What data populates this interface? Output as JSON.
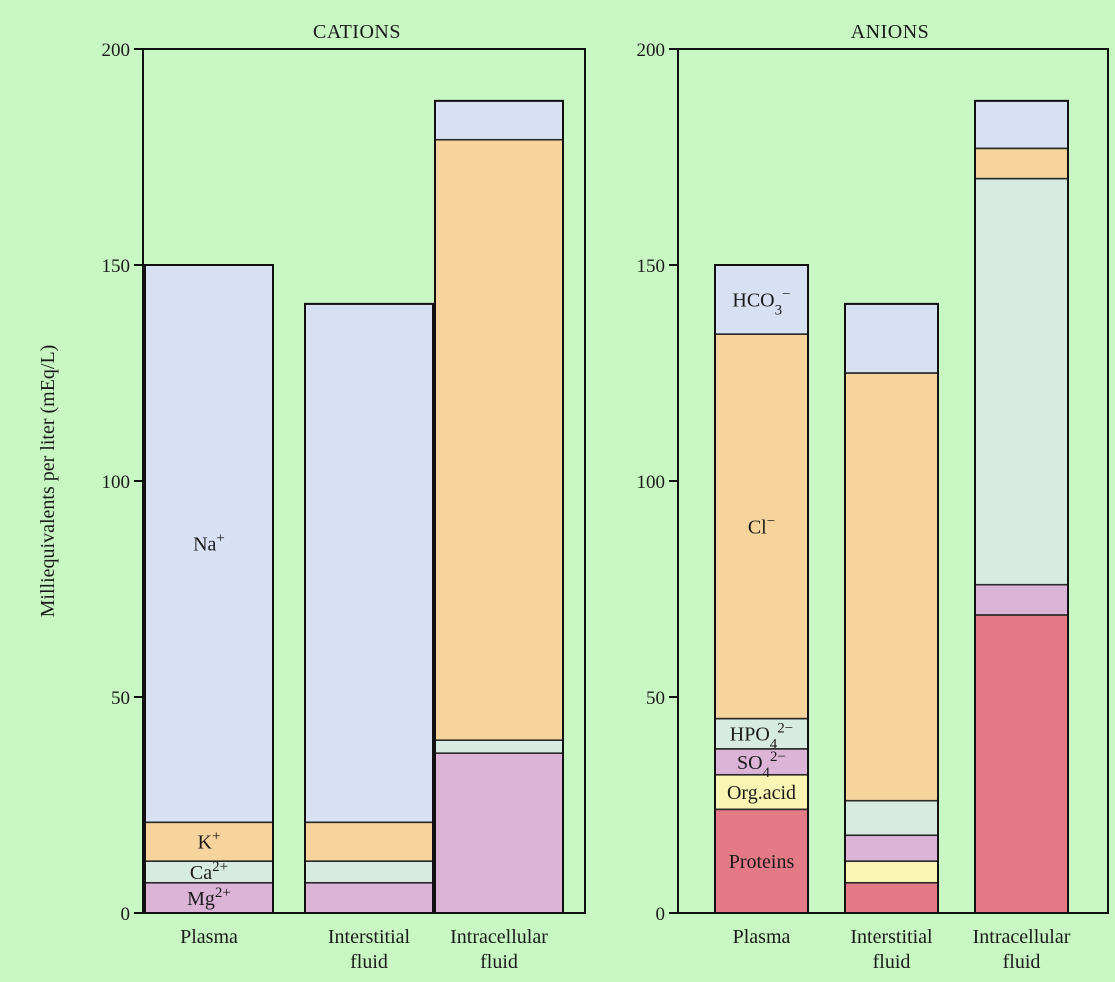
{
  "chart_data": {
    "type": "bar",
    "stacked": true,
    "ylabel": "Milliequivalents per liter (mEq/L)",
    "ylim": [
      0,
      200
    ],
    "yticks": [
      "0",
      "50",
      "100",
      "150",
      "200"
    ],
    "colors": {
      "blue": "#d8e0f3",
      "orange": "#f6d49c",
      "green": "#d6ebe2",
      "pink": "#dbb4d8",
      "yellow": "#fbf5b3",
      "red": "#e37a86"
    },
    "panels": [
      {
        "title": "CATIONS",
        "categories": [
          "Plasma",
          "Interstitial fluid",
          "Intracellular fluid"
        ],
        "category_lines": [
          [
            "Plasma"
          ],
          [
            "Interstitial",
            "fluid"
          ],
          [
            "Intracellular",
            "fluid"
          ]
        ],
        "stacks": [
          [
            {
              "ion": "Mg2+",
              "value": 7,
              "color": "pink"
            },
            {
              "ion": "Ca2+",
              "value": 5,
              "color": "green"
            },
            {
              "ion": "K+",
              "value": 9,
              "color": "orange"
            },
            {
              "ion": "Na+",
              "value": 129,
              "color": "blue"
            }
          ],
          [
            {
              "ion": "Mg2+",
              "value": 7,
              "color": "pink"
            },
            {
              "ion": "Ca2+",
              "value": 5,
              "color": "green"
            },
            {
              "ion": "K+",
              "value": 9,
              "color": "orange"
            },
            {
              "ion": "Na+",
              "value": 120,
              "color": "blue"
            }
          ],
          [
            {
              "ion": "Mg2+",
              "value": 37,
              "color": "pink"
            },
            {
              "ion": "Ca2+",
              "value": 3,
              "color": "green"
            },
            {
              "ion": "K+",
              "value": 139,
              "color": "orange"
            },
            {
              "ion": "Na+",
              "value": 9,
              "color": "blue"
            }
          ]
        ],
        "labels": [
          {
            "bar": 0,
            "segment": 3,
            "parts": [
              [
                "Na",
                ""
              ],
              [
                "+",
                "sup"
              ]
            ]
          },
          {
            "bar": 0,
            "segment": 2,
            "parts": [
              [
                "K",
                ""
              ],
              [
                "+",
                "sup"
              ]
            ]
          },
          {
            "bar": 0,
            "segment": 1,
            "parts": [
              [
                "Ca",
                ""
              ],
              [
                "2+",
                "sup"
              ]
            ]
          },
          {
            "bar": 0,
            "segment": 0,
            "parts": [
              [
                "Mg",
                ""
              ],
              [
                "2+",
                "sup"
              ]
            ]
          }
        ]
      },
      {
        "title": "ANIONS",
        "categories": [
          "Plasma",
          "Interstitial fluid",
          "Intracellular fluid"
        ],
        "category_lines": [
          [
            "Plasma"
          ],
          [
            "Interstitial",
            "fluid"
          ],
          [
            "Intracellular",
            "fluid"
          ]
        ],
        "stacks": [
          [
            {
              "ion": "Proteins",
              "value": 24,
              "color": "red"
            },
            {
              "ion": "Org.acid",
              "value": 8,
              "color": "yellow"
            },
            {
              "ion": "SO4 2-",
              "value": 6,
              "color": "pink"
            },
            {
              "ion": "HPO4 2-",
              "value": 7,
              "color": "green"
            },
            {
              "ion": "Cl-",
              "value": 89,
              "color": "orange"
            },
            {
              "ion": "HCO3-",
              "value": 16,
              "color": "blue"
            }
          ],
          [
            {
              "ion": "Proteins",
              "value": 7,
              "color": "red"
            },
            {
              "ion": "Org.acid",
              "value": 5,
              "color": "yellow"
            },
            {
              "ion": "SO4 2-",
              "value": 6,
              "color": "pink"
            },
            {
              "ion": "HPO4 2-",
              "value": 8,
              "color": "green"
            },
            {
              "ion": "Cl-",
              "value": 99,
              "color": "orange"
            },
            {
              "ion": "HCO3-",
              "value": 16,
              "color": "blue"
            }
          ],
          [
            {
              "ion": "Proteins",
              "value": 69,
              "color": "red"
            },
            {
              "ion": "SO4 2-",
              "value": 7,
              "color": "pink"
            },
            {
              "ion": "HPO4 2-",
              "value": 94,
              "color": "green"
            },
            {
              "ion": "Cl-",
              "value": 7,
              "color": "orange"
            },
            {
              "ion": "HCO3-",
              "value": 11,
              "color": "blue"
            }
          ]
        ],
        "labels": [
          {
            "bar": 0,
            "segment": 5,
            "parts": [
              [
                "HCO",
                ""
              ],
              [
                "3",
                "sub"
              ],
              [
                "−",
                "sup"
              ]
            ]
          },
          {
            "bar": 0,
            "segment": 4,
            "parts": [
              [
                "Cl",
                ""
              ],
              [
                "−",
                "sup"
              ]
            ]
          },
          {
            "bar": 0,
            "segment": 3,
            "parts": [
              [
                "HPO",
                ""
              ],
              [
                "4",
                "sub"
              ],
              [
                "2−",
                "sup"
              ]
            ]
          },
          {
            "bar": 0,
            "segment": 2,
            "parts": [
              [
                "SO",
                ""
              ],
              [
                "4",
                "sub"
              ],
              [
                "2−",
                "sup"
              ]
            ]
          },
          {
            "bar": 0,
            "segment": 1,
            "parts": [
              [
                "Org.acid",
                ""
              ]
            ]
          },
          {
            "bar": 0,
            "segment": 0,
            "parts": [
              [
                "Proteins",
                ""
              ]
            ]
          }
        ]
      }
    ]
  }
}
